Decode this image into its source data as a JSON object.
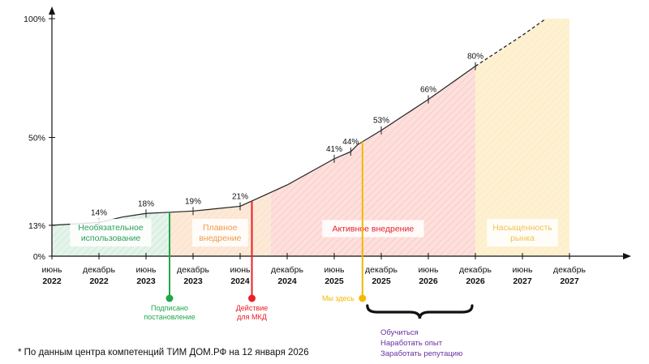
{
  "chart_data": {
    "type": "area",
    "x_ticks": [
      {
        "month": "июнь",
        "year": "2022"
      },
      {
        "month": "декабрь",
        "year": "2022"
      },
      {
        "month": "июнь",
        "year": "2023"
      },
      {
        "month": "декабрь",
        "year": "2023"
      },
      {
        "month": "июнь",
        "year": "2024"
      },
      {
        "month": "декабрь",
        "year": "2024"
      },
      {
        "month": "июнь",
        "year": "2025"
      },
      {
        "month": "декабрь",
        "year": "2025"
      },
      {
        "month": "июнь",
        "year": "2026"
      },
      {
        "month": "декабрь",
        "year": "2026"
      },
      {
        "month": "июнь",
        "year": "2027"
      },
      {
        "month": "декабрь",
        "year": "2027"
      }
    ],
    "y_ticks": [
      {
        "value": 0,
        "label": "0%"
      },
      {
        "value": 13,
        "label": "13%"
      },
      {
        "value": 50,
        "label": "50%"
      },
      {
        "value": 100,
        "label": "100%"
      }
    ],
    "ylim": [
      0,
      100
    ],
    "series": [
      {
        "points": [
          [
            0,
            13
          ],
          [
            0.5,
            13.6
          ],
          [
            1,
            14.2
          ],
          [
            1.5,
            16.5
          ],
          [
            2,
            18
          ],
          [
            2.5,
            18.5
          ],
          [
            3,
            19
          ],
          [
            3.5,
            20
          ],
          [
            4,
            21
          ],
          [
            4.5,
            25.5
          ],
          [
            5,
            30
          ],
          [
            5.5,
            35.5
          ],
          [
            6,
            41
          ],
          [
            6.35,
            44
          ],
          [
            6.5,
            47
          ],
          [
            7,
            53
          ],
          [
            7.5,
            59.5
          ],
          [
            8,
            66
          ],
          [
            8.5,
            73
          ],
          [
            9,
            80
          ]
        ],
        "projection": [
          [
            9,
            80
          ],
          [
            9.5,
            86.5
          ],
          [
            10,
            93
          ],
          [
            10.5,
            100
          ]
        ]
      }
    ],
    "point_labels": [
      {
        "x": 1,
        "y": 14.2,
        "label": "14%"
      },
      {
        "x": 2,
        "y": 18,
        "label": "18%"
      },
      {
        "x": 3,
        "y": 19,
        "label": "19%"
      },
      {
        "x": 4,
        "y": 21,
        "label": "21%"
      },
      {
        "x": 6,
        "y": 41,
        "label": "41%"
      },
      {
        "x": 6.35,
        "y": 44,
        "label": "44%"
      },
      {
        "x": 7,
        "y": 53,
        "label": "53%"
      },
      {
        "x": 8,
        "y": 66,
        "label": "66%"
      },
      {
        "x": 9,
        "y": 80,
        "label": "80%"
      }
    ],
    "phases": [
      {
        "label_lines": [
          "Необязательное",
          "использование"
        ],
        "from": 0,
        "to": 2.5,
        "color": "#2e9e5b",
        "fill": "#e4f4ea"
      },
      {
        "label_lines": [
          "Плавное",
          "внедрение"
        ],
        "from": 2.5,
        "to": 4.65,
        "color": "#f29a4a",
        "fill": "#fde9d8"
      },
      {
        "label_lines": [
          "Активное внедрение"
        ],
        "from": 4.65,
        "to": 9,
        "color": "#e8202a",
        "fill": "#fde0dc"
      },
      {
        "label_lines": [
          "Насыщенность",
          "рынка"
        ],
        "from": 9,
        "to": 11,
        "color": "#f2c14e",
        "fill": "#fdf1d2"
      }
    ],
    "events": [
      {
        "label_lines": [
          "Подписано",
          "постановление"
        ],
        "x": 2.5,
        "color": "#1fa84a"
      },
      {
        "label_lines": [
          "Действие",
          "для МКД"
        ],
        "x": 4.25,
        "color": "#e8202a"
      },
      {
        "label_lines": [
          "Мы здесь"
        ],
        "x": 6.6,
        "color": "#f5b800"
      }
    ],
    "brace": {
      "from": 6.6,
      "to": 9,
      "items": [
        "Обучиться",
        "Наработать опыт",
        "Заработать репутацию"
      ]
    }
  },
  "footnote": "* По данным центра компетенций ТИМ ДОМ.РФ на 12 января 2026"
}
